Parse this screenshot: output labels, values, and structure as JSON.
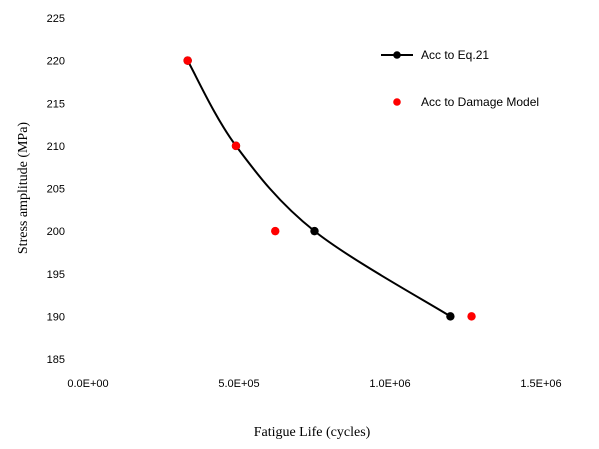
{
  "chart_data": {
    "type": "scatter",
    "title": "",
    "xlabel": "Fatigue Life (cycles)",
    "ylabel": "Stress amplitude (MPa)",
    "xlim": [
      0,
      1500000
    ],
    "ylim": [
      185,
      225
    ],
    "x_ticks": [
      0,
      500000,
      1000000,
      1500000
    ],
    "x_tick_labels": [
      "0.0E+00",
      "5.0E+05",
      "1.0E+06",
      "1.5E+06"
    ],
    "y_ticks": [
      185,
      190,
      195,
      200,
      205,
      210,
      215,
      220,
      225
    ],
    "y_tick_labels": [
      "185",
      "190",
      "195",
      "200",
      "205",
      "210",
      "215",
      "220",
      "225"
    ],
    "grid": false,
    "legend_position": "top-right",
    "series": [
      {
        "name": "Acc to Eq.21",
        "style": "line-markers",
        "smooth": true,
        "color": "#000000",
        "x": [
          330000,
          490000,
          750000,
          1200000
        ],
        "y": [
          220,
          210,
          200,
          190
        ]
      },
      {
        "name": "Acc to Damage Model",
        "style": "markers",
        "color": "#ff0000",
        "x": [
          330000,
          490000,
          620000,
          1270000
        ],
        "y": [
          220,
          210,
          200,
          190
        ]
      }
    ]
  }
}
